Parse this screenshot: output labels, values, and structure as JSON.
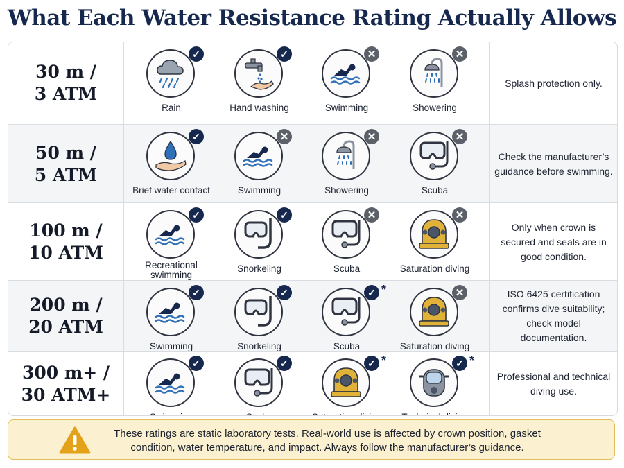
{
  "title": "What Each Water Resistance Rating Actually Allows",
  "rows": [
    {
      "rating": "30 m /\n3 ATM",
      "activities": [
        {
          "label": "Rain",
          "icon": "rain-cloud-icon",
          "status": "allowed"
        },
        {
          "label": "Hand washing",
          "icon": "faucet-hand-icon",
          "status": "allowed"
        },
        {
          "label": "Swimming",
          "icon": "swimmer-icon",
          "status": "not-allowed"
        },
        {
          "label": "Showering",
          "icon": "shower-icon",
          "status": "not-allowed"
        }
      ],
      "note": "Splash protection only."
    },
    {
      "rating": "50 m /\n5 ATM",
      "activities": [
        {
          "label": "Brief water contact",
          "icon": "water-drop-hand-icon",
          "status": "allowed"
        },
        {
          "label": "Swimming",
          "icon": "swimmer-icon",
          "status": "not-allowed"
        },
        {
          "label": "Showering",
          "icon": "shower-icon",
          "status": "not-allowed"
        },
        {
          "label": "Scuba",
          "icon": "scuba-mask-icon",
          "status": "not-allowed"
        }
      ],
      "note": "Check the manufacturer’s guidance before swimming."
    },
    {
      "rating": "100 m /\n10 ATM",
      "activities": [
        {
          "label": "Recreational swimming",
          "icon": "swimmer-icon",
          "status": "allowed"
        },
        {
          "label": "Snorkeling",
          "icon": "snorkel-icon",
          "status": "allowed"
        },
        {
          "label": "Scuba",
          "icon": "scuba-mask-icon",
          "status": "not-allowed"
        },
        {
          "label": "Saturation diving",
          "icon": "diving-helmet-icon",
          "status": "not-allowed"
        }
      ],
      "note": "Only when crown is secured and seals are in good condition."
    },
    {
      "rating": "200 m /\n20 ATM",
      "activities": [
        {
          "label": "Swimming",
          "icon": "swimmer-icon",
          "status": "allowed"
        },
        {
          "label": "Snorkeling",
          "icon": "snorkel-icon",
          "status": "allowed"
        },
        {
          "label": "Scuba",
          "icon": "scuba-mask-icon",
          "status": "allowed-conditional"
        },
        {
          "label": "Saturation diving",
          "icon": "diving-helmet-icon",
          "status": "not-allowed"
        }
      ],
      "note": "ISO 6425 certification confirms dive suitability; check model documentation."
    },
    {
      "rating": "300 m+ /\n30 ATM+",
      "activities": [
        {
          "label": "Swimming",
          "icon": "swimmer-icon",
          "status": "allowed"
        },
        {
          "label": "Scuba",
          "icon": "scuba-mask-icon",
          "status": "allowed"
        },
        {
          "label": "Saturation diving",
          "icon": "diving-helmet-icon",
          "status": "allowed-conditional"
        },
        {
          "label": "Technical diving",
          "icon": "full-face-mask-icon",
          "status": "allowed-conditional"
        }
      ],
      "note": "Professional and technical diving use."
    }
  ],
  "symbols": {
    "allowed": "✓",
    "not_allowed": "✕",
    "conditional": "*"
  },
  "warning": {
    "icon": "warning-triangle-icon",
    "text": "These ratings are static laboratory tests. Real-world use is affected by crown position, gasket condition, water temperature, and impact. Always follow the manufacturer’s guidance."
  },
  "colors": {
    "navy": "#17284f",
    "water_blue": "#2f6fb8",
    "brass": "#e0b23a",
    "warning_bg": "#fbf0cf",
    "warning_icon": "#e3a21a"
  }
}
